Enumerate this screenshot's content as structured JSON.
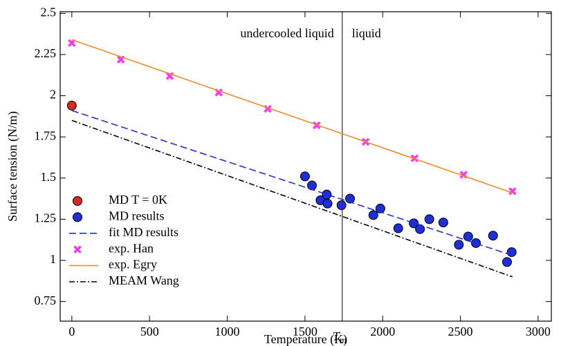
{
  "chart_data": {
    "type": "line",
    "x_label": "Temperature (K)",
    "y_label": "Surface tension (N/m)",
    "xlim": [
      -75,
      3085
    ],
    "ylim": [
      0.631,
      2.51
    ],
    "xticks": [
      0,
      500,
      1000,
      1500,
      2000,
      2500,
      3000
    ],
    "yticks": [
      0.75,
      1,
      1.25,
      1.5,
      1.75,
      2,
      2.25,
      2.5
    ],
    "legend": "lower left",
    "vline": {
      "x": 1740,
      "label": "T",
      "sub": "m"
    },
    "regions": [
      "undercooled liquid",
      "liquid"
    ],
    "series": [
      {
        "name": "MD T = 0K",
        "mode": "markers",
        "marker": "circle",
        "color": "#d42a20",
        "x": [
          0
        ],
        "values": [
          1.94
        ]
      },
      {
        "name": "MD results",
        "mode": "markers",
        "marker": "circle",
        "color": "#1f2fd6",
        "x": [
          1500,
          1545,
          1600,
          1640,
          1645,
          1735,
          1790,
          1940,
          1985,
          2100,
          2200,
          2240,
          2300,
          2390,
          2490,
          2550,
          2600,
          2710,
          2800,
          2830
        ],
        "values": [
          1.51,
          1.455,
          1.365,
          1.4,
          1.345,
          1.335,
          1.375,
          1.275,
          1.315,
          1.195,
          1.225,
          1.19,
          1.25,
          1.23,
          1.095,
          1.145,
          1.105,
          1.15,
          0.99,
          1.05
        ]
      },
      {
        "name": "fit MD results",
        "mode": "lines",
        "dash": "10,5",
        "color": "#1f2fd6",
        "x": [
          0,
          2835
        ],
        "values": [
          1.91,
          1.03
        ]
      },
      {
        "name": "exp.  Han",
        "mode": "markers",
        "marker": "x",
        "color": "#ff33ff",
        "x": [
          0,
          315,
          630,
          945,
          1260,
          1575,
          1890,
          2205,
          2520,
          2835
        ],
        "values": [
          2.32,
          2.22,
          2.12,
          2.02,
          1.92,
          1.82,
          1.72,
          1.62,
          1.52,
          1.42
        ]
      },
      {
        "name": "exp.  Egry",
        "mode": "lines",
        "dash": "",
        "color": "#f08a24",
        "x": [
          0,
          2835
        ],
        "values": [
          2.34,
          1.41
        ]
      },
      {
        "name": "MEAM Wang",
        "mode": "lines",
        "dash": "8,3,2,3",
        "color": "#000000",
        "x": [
          0,
          2835
        ],
        "values": [
          1.85,
          0.9
        ]
      }
    ]
  }
}
